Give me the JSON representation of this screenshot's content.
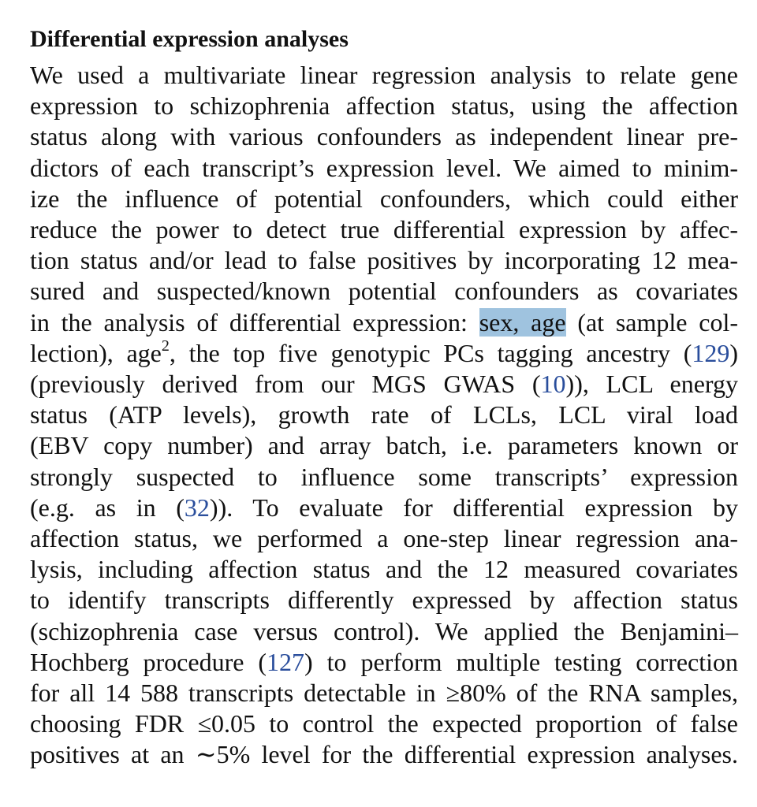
{
  "section": {
    "title": "Differential expression analyses"
  },
  "paragraph": {
    "lines": [
      "We used a multivariate linear regression analysis to relate gene",
      "expression to schizophrenia affection status, using the affection",
      "status along with various confounders as independent linear pre-",
      "dictors of each transcript’s expression level. We aimed to minim-",
      "ize the influence of potential confounders, which could either",
      "reduce the power to detect true differential expression by affec-",
      "tion status and/or lead to false positives by incorporating 12 mea-",
      "sured and suspected/known potential confounders as covariates"
    ],
    "l9_pre": "in the analysis of differential expression: ",
    "l9_highlight": "sex, age",
    "l9_post": " (at sample col-",
    "l10_pre": "lection), age",
    "l10_sup": "2",
    "l10_mid": ", the top five genotypic PCs tagging ancestry (",
    "ref_129": "129",
    "l10_post": ")",
    "l11_pre": "(previously derived from our MGS GWAS (",
    "ref_10": "10",
    "l11_post": ")), LCL energy",
    "l12": "status (ATP levels), growth rate of LCLs, LCL viral load",
    "l13": "(EBV copy number) and array batch, i.e. parameters known or",
    "l14": "strongly suspected to influence some transcripts’ expression",
    "l15_pre": "(e.g. as in (",
    "ref_32": "32",
    "l15_post": ")). To evaluate for differential expression by",
    "l16": "affection status, we performed a one-step linear regression ana-",
    "l17": "lysis, including affection status and the 12 measured covariates",
    "l18": "to identify transcripts differently expressed by affection status",
    "l19": "(schizophrenia case versus control). We applied the Benjamini–",
    "l20_pre": "Hochberg procedure (",
    "ref_127": "127",
    "l20_post": ") to perform multiple testing correction",
    "l21": "for all 14 588 transcripts detectable in ≥80% of the RNA samples,",
    "l22": "choosing FDR ≤0.05 to control the expected proportion of false",
    "l23": "positives at an ∼5% level for the differential expression analyses."
  }
}
